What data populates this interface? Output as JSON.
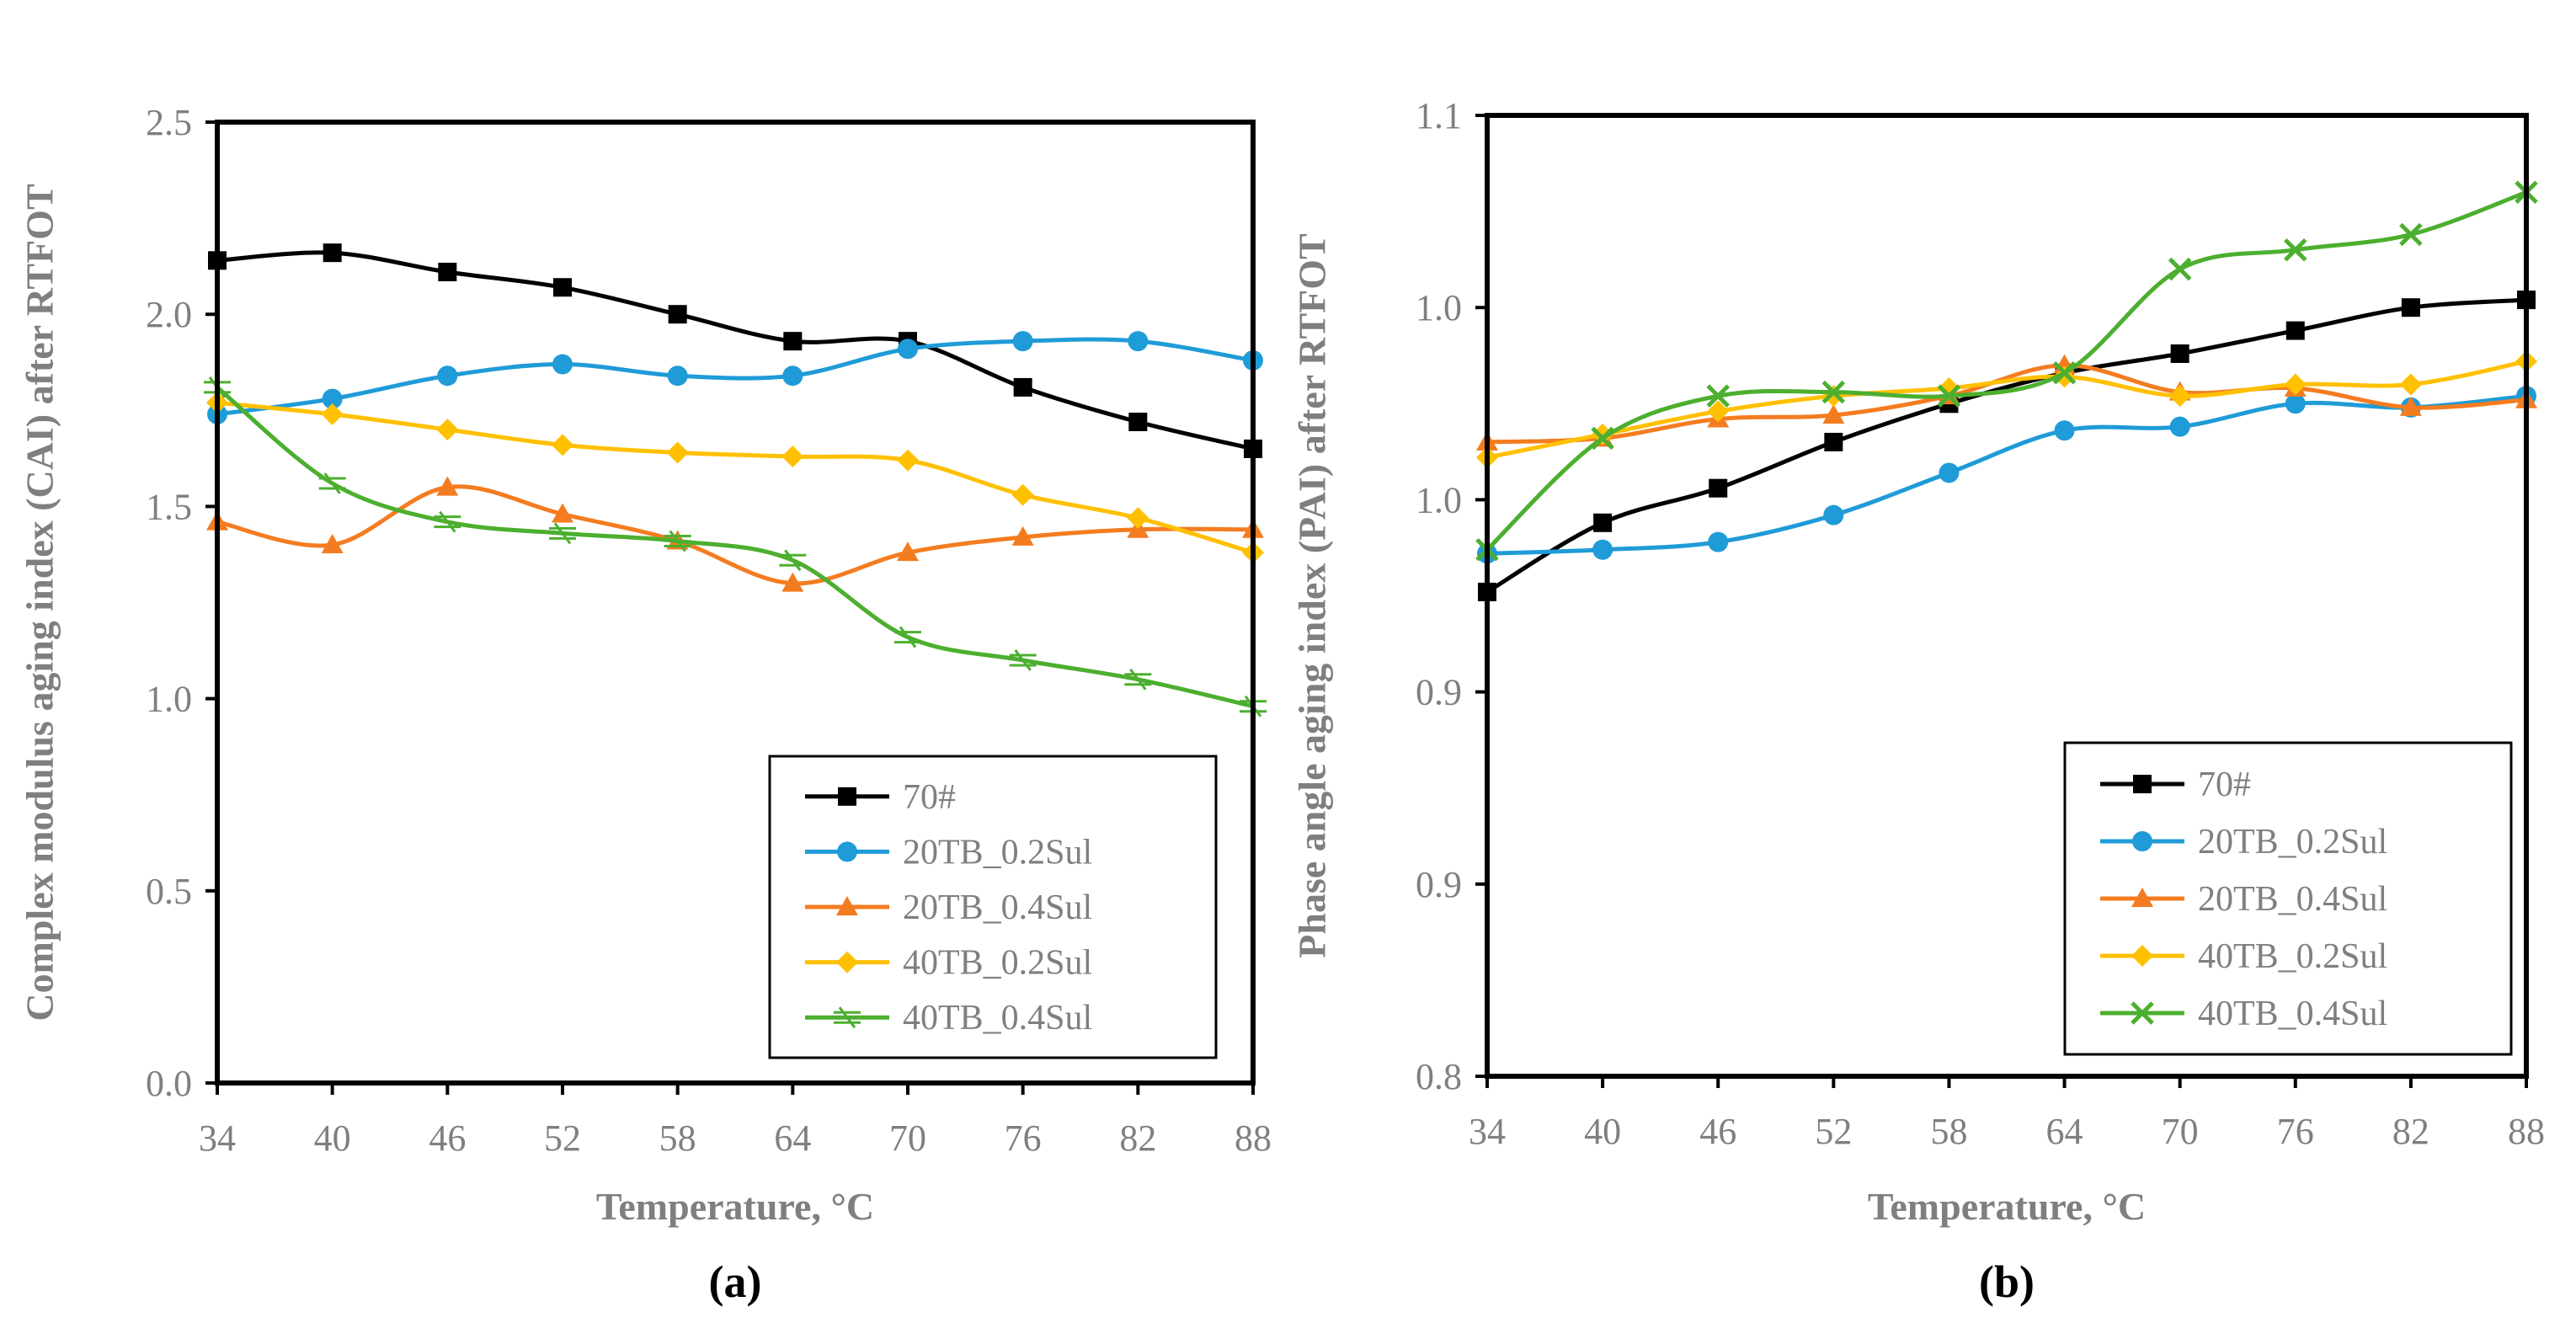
{
  "chart_data": [
    {
      "type": "line",
      "caption": "(a)",
      "xlabel": "Temperature, °C",
      "ylabel": "Complex  modulus  aging  index  (CAI)  after RTFOT",
      "x": [
        34,
        40,
        46,
        52,
        58,
        64,
        70,
        76,
        82,
        88
      ],
      "x_tick_labels": [
        "34",
        "40",
        "46",
        "52",
        "58",
        "64",
        "70",
        "76",
        "82",
        "88"
      ],
      "ylim": [
        0.0,
        2.5
      ],
      "y_tick_values": [
        0.0,
        0.5,
        1.0,
        1.5,
        2.0,
        2.5
      ],
      "y_tick_labels": [
        "0.0",
        "0.5",
        "1.0",
        "1.5",
        "2.0",
        "2.5"
      ],
      "legend_position": "bottom-right",
      "series": [
        {
          "name": "70#",
          "color": "#000000",
          "marker": "square",
          "values": [
            2.14,
            2.16,
            2.11,
            2.07,
            2.0,
            1.93,
            1.93,
            1.81,
            1.72,
            1.65
          ]
        },
        {
          "name": "20TB_0.2Sul",
          "color": "#1f9bd7",
          "marker": "circle",
          "values": [
            1.74,
            1.78,
            1.84,
            1.87,
            1.84,
            1.84,
            1.91,
            1.93,
            1.93,
            1.88
          ]
        },
        {
          "name": "20TB_0.4Sul",
          "color": "#f47c20",
          "marker": "triangle",
          "values": [
            1.46,
            1.4,
            1.55,
            1.48,
            1.41,
            1.3,
            1.38,
            1.42,
            1.44,
            1.44
          ]
        },
        {
          "name": "40TB_0.2Sul",
          "color": "#ffc000",
          "marker": "diamond",
          "values": [
            1.77,
            1.74,
            1.7,
            1.66,
            1.64,
            1.63,
            1.62,
            1.53,
            1.47,
            1.38
          ]
        },
        {
          "name": "40TB_0.4Sul",
          "color": "#4caf2f",
          "marker": "dash",
          "values": [
            1.81,
            1.56,
            1.46,
            1.43,
            1.41,
            1.36,
            1.16,
            1.1,
            1.05,
            0.98
          ]
        }
      ]
    },
    {
      "type": "line",
      "caption": "(b)",
      "xlabel": "Temperature, °C",
      "ylabel": "Phase angle aging index (PAI) after RTFOT",
      "x": [
        34,
        40,
        46,
        52,
        58,
        64,
        70,
        76,
        82,
        88
      ],
      "x_tick_labels": [
        "34",
        "40",
        "46",
        "52",
        "58",
        "64",
        "70",
        "76",
        "82",
        "88"
      ],
      "ylim": [
        0.8,
        1.05
      ],
      "y_tick_values": [
        0.8,
        0.85,
        0.9,
        0.95,
        1.0,
        1.05
      ],
      "y_tick_labels": [
        "0.8",
        "0.9",
        "0.9",
        "1.0",
        "1.0",
        "1.1"
      ],
      "legend_position": "bottom-right",
      "series": [
        {
          "name": "70#",
          "color": "#000000",
          "marker": "square",
          "values": [
            0.926,
            0.944,
            0.953,
            0.965,
            0.975,
            0.983,
            0.988,
            0.994,
            1.0,
            1.002
          ]
        },
        {
          "name": "20TB_0.2Sul",
          "color": "#1f9bd7",
          "marker": "circle",
          "values": [
            0.936,
            0.937,
            0.939,
            0.946,
            0.957,
            0.968,
            0.969,
            0.975,
            0.974,
            0.977
          ]
        },
        {
          "name": "20TB_0.4Sul",
          "color": "#f47c20",
          "marker": "triangle",
          "values": [
            0.965,
            0.966,
            0.971,
            0.972,
            0.977,
            0.985,
            0.978,
            0.979,
            0.974,
            0.976
          ]
        },
        {
          "name": "40TB_0.2Sul",
          "color": "#ffc000",
          "marker": "diamond",
          "values": [
            0.961,
            0.967,
            0.973,
            0.977,
            0.979,
            0.982,
            0.977,
            0.98,
            0.98,
            0.986
          ]
        },
        {
          "name": "40TB_0.4Sul",
          "color": "#4caf2f",
          "marker": "x",
          "values": [
            0.937,
            0.966,
            0.977,
            0.978,
            0.977,
            0.983,
            1.01,
            1.015,
            1.019,
            1.03
          ]
        }
      ]
    }
  ]
}
